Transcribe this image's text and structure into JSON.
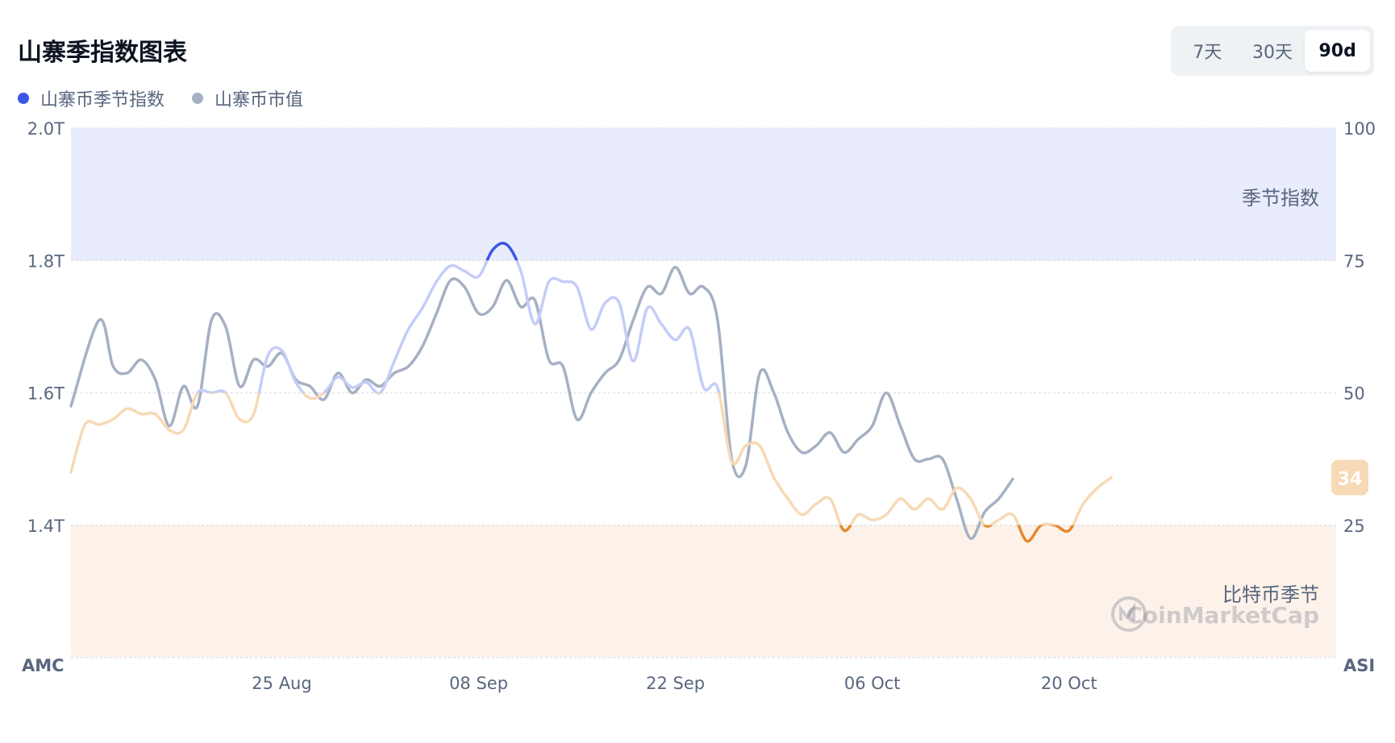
{
  "header": {
    "title": "山寨季指数图表"
  },
  "legend": [
    {
      "label": "山寨币季节指数",
      "color": "#3b55e6"
    },
    {
      "label": "山寨币市值",
      "color": "#a6b0c3"
    }
  ],
  "range_buttons": [
    {
      "label": "7天",
      "active": false
    },
    {
      "label": "30天",
      "active": false
    },
    {
      "label": "90d",
      "active": true
    }
  ],
  "chart_data": {
    "type": "line",
    "title": "山寨季指数图表",
    "left_axis": {
      "ticks": [
        "2.0T",
        "1.8T",
        "1.6T",
        "1.4T"
      ],
      "tick_values": [
        2.0,
        1.8,
        1.6,
        1.4
      ],
      "range": [
        1.2,
        2.0
      ],
      "footer_label": "AMC"
    },
    "right_axis": {
      "ticks": [
        "100",
        "75",
        "50",
        "25"
      ],
      "tick_values": [
        100,
        75,
        50,
        25
      ],
      "range": [
        0,
        100
      ],
      "footer_label": "ASI"
    },
    "x_ticks": [
      {
        "label": "25 Aug",
        "day": 12
      },
      {
        "label": "08 Sep",
        "day": 26
      },
      {
        "label": "22 Sep",
        "day": 40
      },
      {
        "label": "06 Oct",
        "day": 54
      },
      {
        "label": "20 Oct",
        "day": 68
      }
    ],
    "x_range": [
      -3,
      87
    ],
    "zones": [
      {
        "label": "季节指数",
        "from": 75,
        "to": 100,
        "color": "#e9ecfd"
      },
      {
        "label": "比特币季节",
        "from": 0,
        "to": 25,
        "color": "#fdf2e9"
      }
    ],
    "current_value_badge": "34",
    "watermark": "CoinMarketCap",
    "series": [
      {
        "name": "山寨币市值",
        "axis": "left",
        "color": "#a6b0c3",
        "points": [
          [
            -3,
            1.58
          ],
          [
            -1,
            1.71
          ],
          [
            0,
            1.64
          ],
          [
            1,
            1.63
          ],
          [
            2,
            1.65
          ],
          [
            3,
            1.62
          ],
          [
            4,
            1.55
          ],
          [
            5,
            1.61
          ],
          [
            6,
            1.58
          ],
          [
            7,
            1.71
          ],
          [
            8,
            1.7
          ],
          [
            9,
            1.61
          ],
          [
            10,
            1.65
          ],
          [
            11,
            1.64
          ],
          [
            12,
            1.66
          ],
          [
            13,
            1.62
          ],
          [
            14,
            1.61
          ],
          [
            15,
            1.59
          ],
          [
            16,
            1.63
          ],
          [
            17,
            1.6
          ],
          [
            18,
            1.62
          ],
          [
            19,
            1.61
          ],
          [
            20,
            1.63
          ],
          [
            21,
            1.64
          ],
          [
            22,
            1.67
          ],
          [
            23,
            1.72
          ],
          [
            24,
            1.77
          ],
          [
            25,
            1.76
          ],
          [
            26,
            1.72
          ],
          [
            27,
            1.73
          ],
          [
            28,
            1.77
          ],
          [
            29,
            1.73
          ],
          [
            30,
            1.74
          ],
          [
            31,
            1.65
          ],
          [
            32,
            1.64
          ],
          [
            33,
            1.56
          ],
          [
            34,
            1.6
          ],
          [
            35,
            1.63
          ],
          [
            36,
            1.65
          ],
          [
            37,
            1.71
          ],
          [
            38,
            1.76
          ],
          [
            39,
            1.75
          ],
          [
            40,
            1.79
          ],
          [
            41,
            1.75
          ],
          [
            42,
            1.76
          ],
          [
            43,
            1.71
          ],
          [
            44,
            1.5
          ],
          [
            45,
            1.49
          ],
          [
            46,
            1.63
          ],
          [
            47,
            1.6
          ],
          [
            48,
            1.54
          ],
          [
            49,
            1.51
          ],
          [
            50,
            1.52
          ],
          [
            51,
            1.54
          ],
          [
            52,
            1.51
          ],
          [
            53,
            1.53
          ],
          [
            54,
            1.55
          ],
          [
            55,
            1.6
          ],
          [
            56,
            1.55
          ],
          [
            57,
            1.5
          ],
          [
            58,
            1.5
          ],
          [
            59,
            1.5
          ],
          [
            60,
            1.44
          ],
          [
            61,
            1.38
          ],
          [
            62,
            1.42
          ],
          [
            63,
            1.44
          ],
          [
            64,
            1.47
          ]
        ]
      },
      {
        "name": "山寨币季节指数",
        "axis": "right",
        "color_neutral_above_50": "#c4cdf8",
        "color_neutral_below_50": "#f7d9b6",
        "color_alt_season": "#3b55e6",
        "color_btc_season": "#e58a2e",
        "points": [
          [
            -3,
            35
          ],
          [
            -2,
            44
          ],
          [
            -1,
            44
          ],
          [
            0,
            45
          ],
          [
            1,
            47
          ],
          [
            2,
            46
          ],
          [
            3,
            46
          ],
          [
            4,
            43
          ],
          [
            5,
            43
          ],
          [
            6,
            50
          ],
          [
            7,
            50
          ],
          [
            8,
            50
          ],
          [
            9,
            45
          ],
          [
            10,
            46
          ],
          [
            11,
            57
          ],
          [
            12,
            58
          ],
          [
            13,
            52
          ],
          [
            14,
            49
          ],
          [
            15,
            50
          ],
          [
            16,
            53
          ],
          [
            17,
            51
          ],
          [
            18,
            52
          ],
          [
            19,
            50
          ],
          [
            20,
            56
          ],
          [
            21,
            62
          ],
          [
            22,
            66
          ],
          [
            23,
            71
          ],
          [
            24,
            74
          ],
          [
            25,
            73
          ],
          [
            26,
            72
          ],
          [
            27,
            77
          ],
          [
            28,
            78
          ],
          [
            29,
            73
          ],
          [
            30,
            63
          ],
          [
            31,
            71
          ],
          [
            32,
            71
          ],
          [
            33,
            70
          ],
          [
            34,
            62
          ],
          [
            35,
            67
          ],
          [
            36,
            67
          ],
          [
            37,
            56
          ],
          [
            38,
            66
          ],
          [
            39,
            63
          ],
          [
            40,
            60
          ],
          [
            41,
            62
          ],
          [
            42,
            51
          ],
          [
            43,
            51
          ],
          [
            44,
            37
          ],
          [
            45,
            40
          ],
          [
            46,
            40
          ],
          [
            47,
            34
          ],
          [
            48,
            30
          ],
          [
            49,
            27
          ],
          [
            50,
            29
          ],
          [
            51,
            30
          ],
          [
            52,
            24
          ],
          [
            53,
            27
          ],
          [
            54,
            26
          ],
          [
            55,
            27
          ],
          [
            56,
            30
          ],
          [
            57,
            28
          ],
          [
            58,
            30
          ],
          [
            59,
            28
          ],
          [
            60,
            32
          ],
          [
            61,
            30
          ],
          [
            62,
            25
          ],
          [
            63,
            26
          ],
          [
            64,
            27
          ],
          [
            65,
            22
          ],
          [
            66,
            25
          ],
          [
            67,
            25
          ],
          [
            68,
            24
          ],
          [
            69,
            29
          ],
          [
            70,
            32
          ],
          [
            71,
            34
          ]
        ]
      }
    ]
  }
}
